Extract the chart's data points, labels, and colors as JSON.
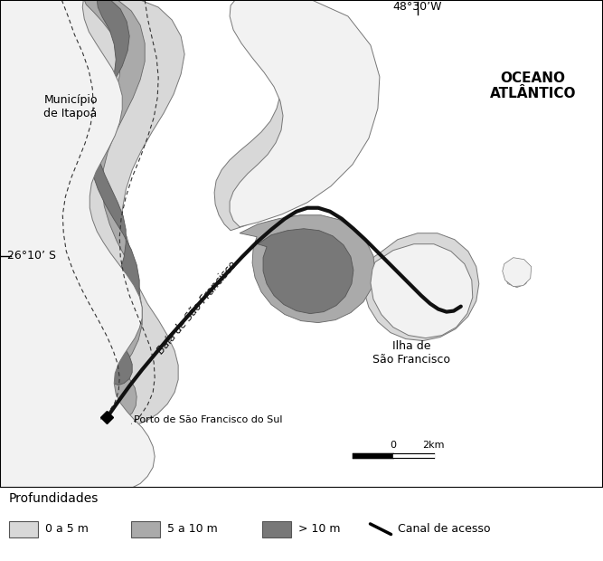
{
  "fig_width": 6.67,
  "fig_height": 6.2,
  "dpi": 100,
  "color_ocean": "#888888",
  "color_land": "#f2f2f2",
  "color_0_5": "#d8d8d8",
  "color_5_10": "#aaaaaa",
  "color_10p": "#787878",
  "color_canal": "#111111",
  "color_border": "#555555",
  "lat_label": "26°10’ S",
  "lon_label": "48°30’W",
  "ocean_label": "OCEANO\nATLÂNTICO",
  "municipio_label": "Município\nde Itapoá",
  "baia_label": "Baía de São Francisco",
  "ilha_label": "Ilha de\nSão Francisco",
  "porto_label": "Porto de São Francisco do Sul",
  "legend_title": "Profundidades",
  "legend_0_5": "0 a 5 m",
  "legend_5_10": "5 a 10 m",
  "legend_10": "> 10 m",
  "legend_canal": "Canal de acesso",
  "scale_label": "2km",
  "scale_zero": "0"
}
